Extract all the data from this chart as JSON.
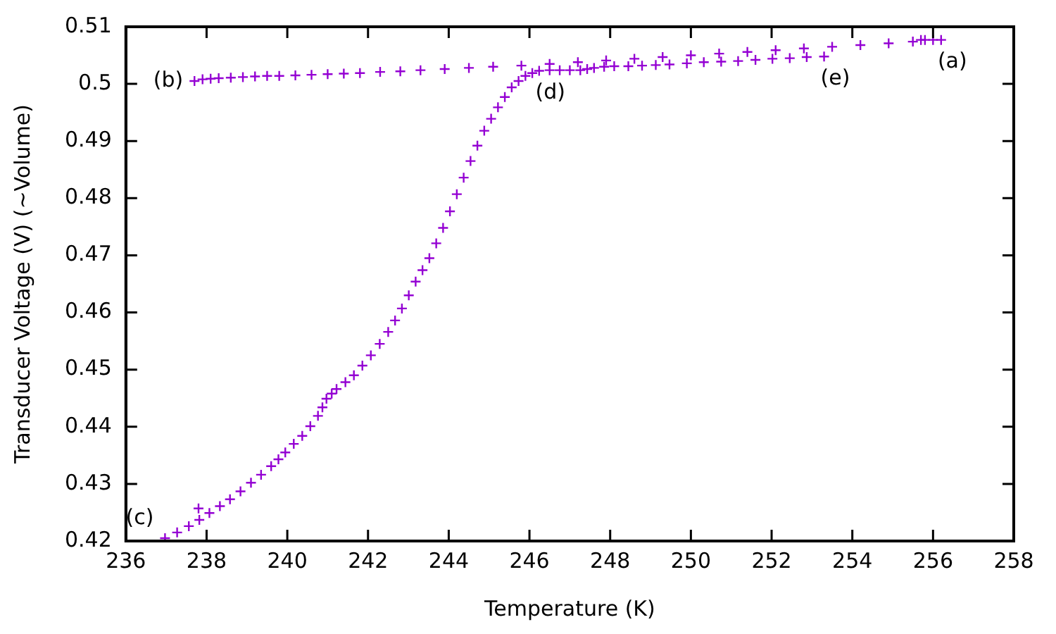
{
  "chart_data": {
    "type": "scatter",
    "xlabel": "Temperature (K)",
    "ylabel": "Transducer Voltage (V) (~Volume)",
    "xlim": [
      236,
      258
    ],
    "xticks": [
      236,
      238,
      240,
      242,
      244,
      246,
      248,
      250,
      252,
      254,
      256,
      258
    ],
    "ylim": [
      0.42,
      0.51
    ],
    "yticks": [
      0.42,
      0.43,
      0.44,
      0.45,
      0.46,
      0.47,
      0.48,
      0.49,
      0.5,
      0.51
    ],
    "grid": false,
    "legend": false,
    "marker": "cross",
    "series": [
      {
        "color": "#9400d3",
        "x": [
          237.7,
          237.9,
          238.1,
          238.3,
          238.6,
          238.9,
          239.2,
          239.5,
          239.8,
          240.2,
          240.6,
          241.0,
          241.4,
          241.8,
          242.3,
          242.8,
          243.3,
          243.9,
          244.5,
          245.1,
          245.8,
          246.5,
          247.2,
          247.9,
          248.6,
          249.3,
          250.0,
          250.7,
          251.4,
          252.1,
          252.8,
          253.5,
          254.2,
          254.9,
          255.5,
          255.7,
          255.8,
          256.0,
          256.2,
          237.8,
          236.97,
          237.27,
          237.56,
          237.82,
          238.07,
          238.33,
          238.58,
          238.84,
          239.1,
          239.35,
          239.6,
          239.78,
          239.95,
          240.16,
          240.37,
          240.57,
          240.76,
          240.87,
          240.97,
          241.1,
          241.22,
          241.44,
          241.65,
          241.86,
          242.07,
          242.29,
          242.5,
          242.67,
          242.84,
          243.01,
          243.18,
          243.35,
          243.52,
          243.69,
          243.86,
          244.03,
          244.2,
          244.37,
          244.54,
          244.71,
          244.88,
          245.05,
          245.22,
          245.39,
          245.56,
          245.73,
          245.9,
          246.07,
          246.24,
          246.5,
          246.75,
          247.0,
          247.26,
          247.43,
          247.6,
          247.85,
          248.1,
          248.45,
          248.79,
          249.13,
          249.47,
          249.9,
          250.32,
          250.75,
          251.17,
          251.6,
          252.02,
          252.45,
          252.87,
          253.3
        ],
        "values": [
          0.5005,
          0.5008,
          0.5009,
          0.501,
          0.5011,
          0.5012,
          0.5013,
          0.5014,
          0.5014,
          0.5015,
          0.5016,
          0.5017,
          0.5018,
          0.5019,
          0.5021,
          0.5022,
          0.5024,
          0.5026,
          0.5028,
          0.503,
          0.5032,
          0.5035,
          0.5038,
          0.5041,
          0.5044,
          0.5047,
          0.505,
          0.5053,
          0.5056,
          0.5059,
          0.5062,
          0.5065,
          0.5068,
          0.5071,
          0.5074,
          0.5077,
          0.5077,
          0.5077,
          0.5077,
          0.4257,
          0.4205,
          0.4215,
          0.4226,
          0.4237,
          0.4249,
          0.4261,
          0.4273,
          0.4287,
          0.4302,
          0.4316,
          0.4331,
          0.4343,
          0.4355,
          0.437,
          0.4384,
          0.4401,
          0.4419,
          0.4434,
          0.4449,
          0.4458,
          0.4466,
          0.4478,
          0.449,
          0.4507,
          0.4525,
          0.4545,
          0.4566,
          0.4586,
          0.4607,
          0.463,
          0.4654,
          0.4674,
          0.4695,
          0.4721,
          0.4748,
          0.4777,
          0.4807,
          0.4836,
          0.4865,
          0.4892,
          0.4918,
          0.4939,
          0.4959,
          0.4977,
          0.4994,
          0.5005,
          0.5014,
          0.5019,
          0.5023,
          0.5024,
          0.5024,
          0.5024,
          0.5024,
          0.5026,
          0.5028,
          0.503,
          0.5031,
          0.5031,
          0.5032,
          0.5033,
          0.5034,
          0.5036,
          0.5038,
          0.5039,
          0.504,
          0.5042,
          0.5044,
          0.5045,
          0.5047,
          0.5048
        ]
      }
    ],
    "annotations": [
      {
        "text": "(a)",
        "x": 256.2,
        "y": 0.5077
      },
      {
        "text": "(b)",
        "x": 237.7,
        "y": 0.5005
      },
      {
        "text": "(c)",
        "x": 236.97,
        "y": 0.4205
      },
      {
        "text": "(d)",
        "x": 246.24,
        "y": 0.5023
      },
      {
        "text": "(e)",
        "x": 253.3,
        "y": 0.5048
      }
    ]
  }
}
